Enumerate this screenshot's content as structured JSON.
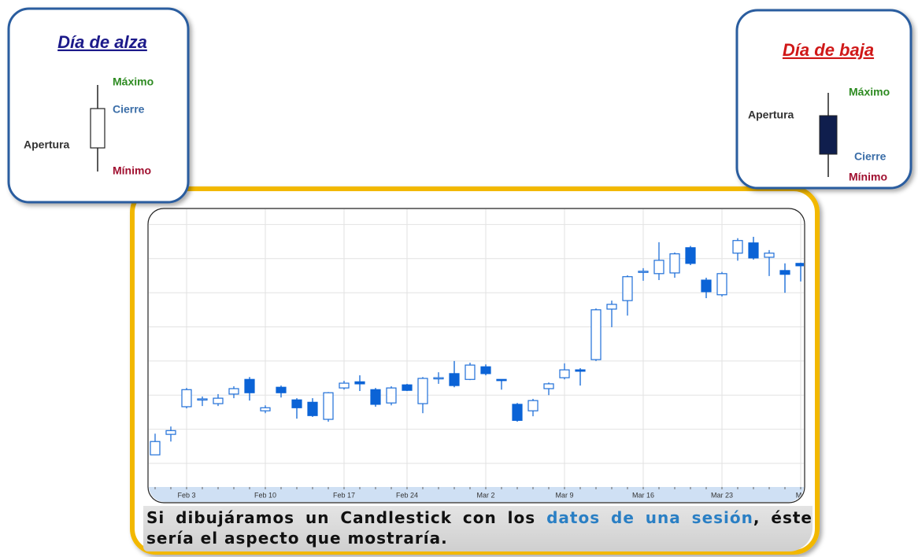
{
  "up_day": {
    "title": "Día de alza",
    "high": "Máximo",
    "close": "Cierre",
    "open": "Apertura",
    "low": "Mínimo"
  },
  "down_day": {
    "title": "Día de baja",
    "high": "Máximo",
    "open": "Apertura",
    "close": "Cierre",
    "low": "Mínimo"
  },
  "caption": [
    "Si dibujáramos un Candlestick con los ",
    "datos de una sesión",
    ", éste sería el aspecto que mostraría."
  ],
  "chart_data": {
    "type": "candlestick",
    "categories": [
      null,
      null,
      "Feb 3",
      null,
      null,
      null,
      null,
      "Feb 10",
      null,
      null,
      null,
      null,
      "Feb 17",
      null,
      null,
      null,
      "Feb 24",
      null,
      null,
      null,
      null,
      "Mar 2",
      null,
      null,
      null,
      null,
      "Mar 9",
      null,
      null,
      null,
      null,
      "Mar 16",
      null,
      null,
      null,
      null,
      "Mar 23",
      null,
      null,
      null,
      null,
      "Ma"
    ],
    "open": [
      1.25,
      1.85,
      2.66,
      2.86,
      2.75,
      3.03,
      3.46,
      2.54,
      3.23,
      2.86,
      2.79,
      2.29,
      3.21,
      3.39,
      3.16,
      2.77,
      3.3,
      2.75,
      3.49,
      3.63,
      3.46,
      3.83,
      3.46,
      2.73,
      2.54,
      3.19,
      3.51,
      3.74,
      4.04,
      5.52,
      5.77,
      6.61,
      6.56,
      6.58,
      7.32,
      6.37,
      5.94,
      7.16,
      7.46,
      7.04,
      6.65,
      6.86
    ],
    "high": [
      1.87,
      2.08,
      3.21,
      2.96,
      3.03,
      3.26,
      3.53,
      2.7,
      3.28,
      2.91,
      2.91,
      3.09,
      3.42,
      3.58,
      3.21,
      3.26,
      3.33,
      3.53,
      3.67,
      4.0,
      3.95,
      3.9,
      3.46,
      2.77,
      2.89,
      3.37,
      3.93,
      3.79,
      5.54,
      5.77,
      6.51,
      6.72,
      7.48,
      7.18,
      7.37,
      6.44,
      6.61,
      7.6,
      7.64,
      7.25,
      6.86,
      6.88
    ],
    "low": [
      1.25,
      1.64,
      2.61,
      2.68,
      2.68,
      2.91,
      2.84,
      2.47,
      2.93,
      2.31,
      2.36,
      2.22,
      3.16,
      3.12,
      2.66,
      2.7,
      3.12,
      2.47,
      3.33,
      3.23,
      3.44,
      3.58,
      3.16,
      2.22,
      2.38,
      3.0,
      3.46,
      3.28,
      4.0,
      4.99,
      5.33,
      6.35,
      6.37,
      6.44,
      6.81,
      5.84,
      5.89,
      6.94,
      6.97,
      6.49,
      6.0,
      6.33
    ],
    "close": [
      1.64,
      1.96,
      3.16,
      2.89,
      2.91,
      3.19,
      3.07,
      2.63,
      3.07,
      2.63,
      2.4,
      3.07,
      3.35,
      3.33,
      2.73,
      3.21,
      3.14,
      3.49,
      3.51,
      3.28,
      3.88,
      3.63,
      3.44,
      2.26,
      2.84,
      3.33,
      3.74,
      3.7,
      5.5,
      5.66,
      6.47,
      6.63,
      6.95,
      7.14,
      6.86,
      6.03,
      6.56,
      7.53,
      7.02,
      7.16,
      6.54,
      6.79
    ],
    "ylim": [
      0.4,
      8.4
    ],
    "yticks": [
      1,
      2,
      3,
      4,
      5,
      6,
      7,
      8
    ],
    "grid": true,
    "up_color": "#1f6fd8",
    "down_color": "#0b63d6"
  }
}
